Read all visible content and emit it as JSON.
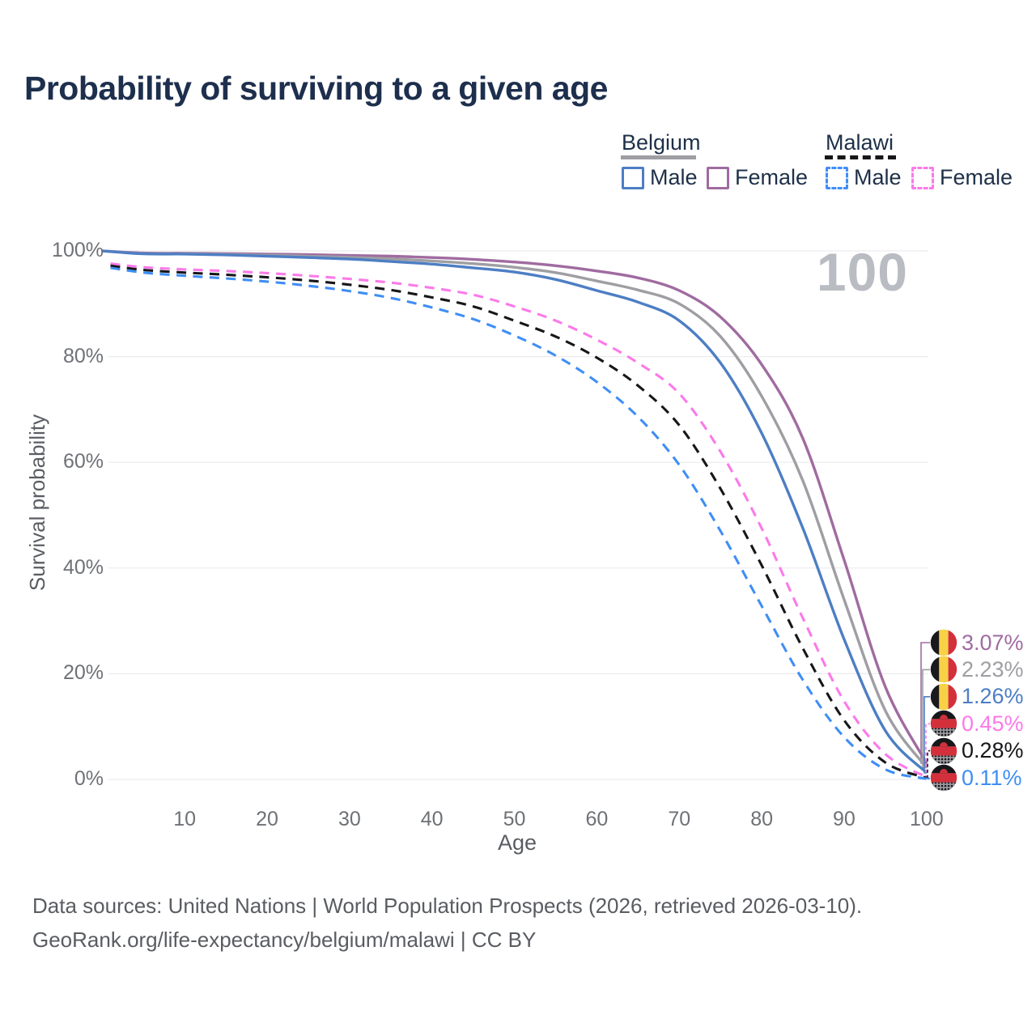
{
  "title": "Probability of surviving to a given age",
  "legend": {
    "groups": [
      {
        "label": "Belgium",
        "underline": {
          "color": "#9e9ea3",
          "dashed": false
        },
        "items": [
          {
            "label": "Male",
            "color": "#4d7ec4",
            "dashed": false
          },
          {
            "label": "Female",
            "color": "#a06ba0",
            "dashed": false
          }
        ]
      },
      {
        "label": "Malawi",
        "underline": {
          "color": "#17171a",
          "dashed": true
        },
        "items": [
          {
            "label": "Male",
            "color": "#3f8ef5",
            "dashed": true
          },
          {
            "label": "Female",
            "color": "#fb7ae9",
            "dashed": true
          }
        ]
      }
    ]
  },
  "hover_age_indicator": "100",
  "axes": {
    "y_label": "Survival probability",
    "x_label": "Age",
    "y_ticks": [
      {
        "label": "100%",
        "v": 100
      },
      {
        "label": "80%",
        "v": 80
      },
      {
        "label": "60%",
        "v": 60
      },
      {
        "label": "40%",
        "v": 40
      },
      {
        "label": "20%",
        "v": 20
      },
      {
        "label": "0%",
        "v": 0
      }
    ],
    "x_ticks": [
      {
        "label": "10",
        "v": 10
      },
      {
        "label": "20",
        "v": 20
      },
      {
        "label": "30",
        "v": 30
      },
      {
        "label": "40",
        "v": 40
      },
      {
        "label": "50",
        "v": 50
      },
      {
        "label": "60",
        "v": 60
      },
      {
        "label": "70",
        "v": 70
      },
      {
        "label": "80",
        "v": 80
      },
      {
        "label": "90",
        "v": 90
      },
      {
        "label": "100",
        "v": 100
      }
    ]
  },
  "end_labels": [
    {
      "value": "3.07%",
      "color": "#a06ba0",
      "flag": "belgium"
    },
    {
      "value": "2.23%",
      "color": "#9e9ea3",
      "flag": "belgium"
    },
    {
      "value": "1.26%",
      "color": "#4d7ec4",
      "flag": "belgium"
    },
    {
      "value": "0.45%",
      "color": "#fb7ae9",
      "flag": "malawi"
    },
    {
      "value": "0.28%",
      "color": "#17171a",
      "flag": "malawi"
    },
    {
      "value": "0.11%",
      "color": "#3f8ef5",
      "flag": "malawi"
    }
  ],
  "footer": {
    "line1": "Data sources: United Nations | World Population Prospects (2026, retrieved 2026-03-10).",
    "line2": "GeoRank.org/life-expectancy/belgium/malawi | CC BY"
  },
  "chart_data": {
    "type": "line",
    "title": "Probability of surviving to a given age",
    "xlabel": "Age",
    "ylabel": "Survival probability",
    "xlim": [
      0,
      100
    ],
    "ylim": [
      0,
      100
    ],
    "grid": "horizontal",
    "legend_position": "top-right",
    "series": [
      {
        "name": "Belgium Female",
        "color": "#a06ba0",
        "dashed": false,
        "end_label": "3.07%",
        "points": [
          [
            0,
            100
          ],
          [
            5,
            99.6
          ],
          [
            10,
            99.55
          ],
          [
            15,
            99.5
          ],
          [
            20,
            99.4
          ],
          [
            25,
            99.3
          ],
          [
            30,
            99.15
          ],
          [
            35,
            99.0
          ],
          [
            40,
            98.75
          ],
          [
            45,
            98.4
          ],
          [
            50,
            97.9
          ],
          [
            55,
            97.2
          ],
          [
            60,
            96.2
          ],
          [
            65,
            94.9
          ],
          [
            70,
            92.5
          ],
          [
            75,
            87.5
          ],
          [
            80,
            78.5
          ],
          [
            85,
            64.5
          ],
          [
            90,
            41.5
          ],
          [
            95,
            17.5
          ],
          [
            100,
            3.07
          ]
        ]
      },
      {
        "name": "Belgium Both sexes",
        "color": "#9e9ea3",
        "dashed": false,
        "end_label": "2.23%",
        "points": [
          [
            0,
            100
          ],
          [
            5,
            99.5
          ],
          [
            10,
            99.45
          ],
          [
            15,
            99.35
          ],
          [
            20,
            99.2
          ],
          [
            25,
            99.0
          ],
          [
            30,
            98.8
          ],
          [
            35,
            98.5
          ],
          [
            40,
            98.1
          ],
          [
            45,
            97.6
          ],
          [
            50,
            96.9
          ],
          [
            55,
            95.9
          ],
          [
            60,
            94.3
          ],
          [
            65,
            92.6
          ],
          [
            70,
            90.0
          ],
          [
            75,
            83.8
          ],
          [
            80,
            72.5
          ],
          [
            85,
            56.5
          ],
          [
            90,
            34.0
          ],
          [
            95,
            13.0
          ],
          [
            100,
            2.23
          ]
        ]
      },
      {
        "name": "Belgium Male",
        "color": "#4d7ec4",
        "dashed": false,
        "end_label": "1.26%",
        "points": [
          [
            0,
            100
          ],
          [
            5,
            99.45
          ],
          [
            10,
            99.4
          ],
          [
            15,
            99.25
          ],
          [
            20,
            99.0
          ],
          [
            25,
            98.75
          ],
          [
            30,
            98.45
          ],
          [
            35,
            98.0
          ],
          [
            40,
            97.5
          ],
          [
            45,
            96.8
          ],
          [
            50,
            96.0
          ],
          [
            55,
            94.6
          ],
          [
            60,
            92.5
          ],
          [
            65,
            90.3
          ],
          [
            70,
            86.8
          ],
          [
            75,
            78.8
          ],
          [
            80,
            65.5
          ],
          [
            85,
            47.5
          ],
          [
            90,
            26.5
          ],
          [
            95,
            9.2
          ],
          [
            100,
            1.26
          ]
        ]
      },
      {
        "name": "Malawi Female",
        "color": "#fb7ae9",
        "dashed": true,
        "end_label": "0.45%",
        "points": [
          [
            1,
            97.6
          ],
          [
            5,
            96.9
          ],
          [
            10,
            96.5
          ],
          [
            15,
            96.2
          ],
          [
            20,
            95.8
          ],
          [
            25,
            95.3
          ],
          [
            30,
            94.7
          ],
          [
            35,
            94.0
          ],
          [
            40,
            93.0
          ],
          [
            45,
            91.7
          ],
          [
            50,
            89.5
          ],
          [
            55,
            86.8
          ],
          [
            60,
            83.2
          ],
          [
            65,
            78.8
          ],
          [
            70,
            73.0
          ],
          [
            75,
            62.0
          ],
          [
            80,
            47.5
          ],
          [
            85,
            30.5
          ],
          [
            90,
            14.8
          ],
          [
            95,
            4.8
          ],
          [
            100,
            0.45
          ]
        ]
      },
      {
        "name": "Malawi Both sexes",
        "color": "#17171a",
        "dashed": true,
        "end_label": "0.28%",
        "points": [
          [
            1,
            97.2
          ],
          [
            5,
            96.4
          ],
          [
            10,
            95.9
          ],
          [
            15,
            95.5
          ],
          [
            20,
            95.0
          ],
          [
            25,
            94.4
          ],
          [
            30,
            93.6
          ],
          [
            35,
            92.6
          ],
          [
            40,
            91.2
          ],
          [
            45,
            89.5
          ],
          [
            50,
            86.8
          ],
          [
            55,
            83.8
          ],
          [
            60,
            79.8
          ],
          [
            65,
            74.5
          ],
          [
            70,
            67.0
          ],
          [
            75,
            55.0
          ],
          [
            80,
            40.5
          ],
          [
            85,
            24.8
          ],
          [
            90,
            11.2
          ],
          [
            95,
            3.2
          ],
          [
            100,
            0.28
          ]
        ]
      },
      {
        "name": "Malawi Male",
        "color": "#3f8ef5",
        "dashed": true,
        "end_label": "0.11%",
        "points": [
          [
            1,
            96.8
          ],
          [
            5,
            95.9
          ],
          [
            10,
            95.3
          ],
          [
            15,
            94.8
          ],
          [
            20,
            94.2
          ],
          [
            25,
            93.4
          ],
          [
            30,
            92.4
          ],
          [
            35,
            91.1
          ],
          [
            40,
            89.3
          ],
          [
            45,
            87.1
          ],
          [
            50,
            84.0
          ],
          [
            55,
            80.2
          ],
          [
            60,
            75.2
          ],
          [
            65,
            68.6
          ],
          [
            70,
            59.5
          ],
          [
            75,
            47.0
          ],
          [
            80,
            32.8
          ],
          [
            85,
            18.8
          ],
          [
            90,
            8.0
          ],
          [
            95,
            1.9
          ],
          [
            100,
            0.11
          ]
        ]
      }
    ]
  }
}
